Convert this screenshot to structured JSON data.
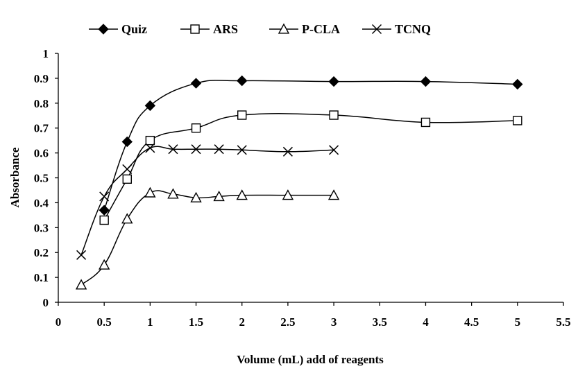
{
  "chart_data": {
    "type": "line",
    "title": "",
    "xlabel": "Volume (mL) add of reagents",
    "ylabel": "Absorbance",
    "xlim": [
      0,
      5.5
    ],
    "ylim": [
      0,
      1
    ],
    "xticks": [
      0,
      0.5,
      1,
      1.5,
      2,
      2.5,
      3,
      3.5,
      4,
      4.5,
      5,
      5.5
    ],
    "yticks": [
      0,
      0.1,
      0.2,
      0.3,
      0.4,
      0.5,
      0.6,
      0.7,
      0.8,
      0.9,
      1
    ],
    "xtick_labels": [
      "0",
      "0.5",
      "1",
      "1.5",
      "2",
      "2.5",
      "3",
      "3.5",
      "4",
      "4.5",
      "5",
      "5.5"
    ],
    "ytick_labels": [
      "0",
      "0.1",
      "0.2",
      "0.3",
      "0.4",
      "0.5",
      "0.6",
      "0.7",
      "0.8",
      "0.9",
      "1"
    ],
    "grid": false,
    "smooth": true,
    "legend_position": "top",
    "series": [
      {
        "name": "Quiz",
        "marker": "filled-diamond",
        "x": [
          0.5,
          0.75,
          1,
          1.5,
          2,
          3,
          4,
          5
        ],
        "y": [
          0.37,
          0.645,
          0.79,
          0.88,
          0.89,
          0.887,
          0.887,
          0.876
        ]
      },
      {
        "name": "ARS",
        "marker": "open-square",
        "x": [
          0.5,
          0.75,
          1,
          1.5,
          2,
          3,
          4,
          5
        ],
        "y": [
          0.33,
          0.495,
          0.65,
          0.7,
          0.752,
          0.752,
          0.723,
          0.73
        ]
      },
      {
        "name": "P-CLA",
        "marker": "open-triangle",
        "x": [
          0.25,
          0.5,
          0.75,
          1,
          1.25,
          1.5,
          1.75,
          2,
          2.5,
          3
        ],
        "y": [
          0.07,
          0.15,
          0.335,
          0.44,
          0.435,
          0.42,
          0.425,
          0.43,
          0.43,
          0.43
        ]
      },
      {
        "name": "TCNQ",
        "marker": "x-cross",
        "x": [
          0.25,
          0.5,
          0.75,
          1,
          1.25,
          1.5,
          1.75,
          2,
          2.5,
          3
        ],
        "y": [
          0.19,
          0.425,
          0.535,
          0.62,
          0.615,
          0.615,
          0.615,
          0.612,
          0.605,
          0.612
        ]
      }
    ]
  }
}
